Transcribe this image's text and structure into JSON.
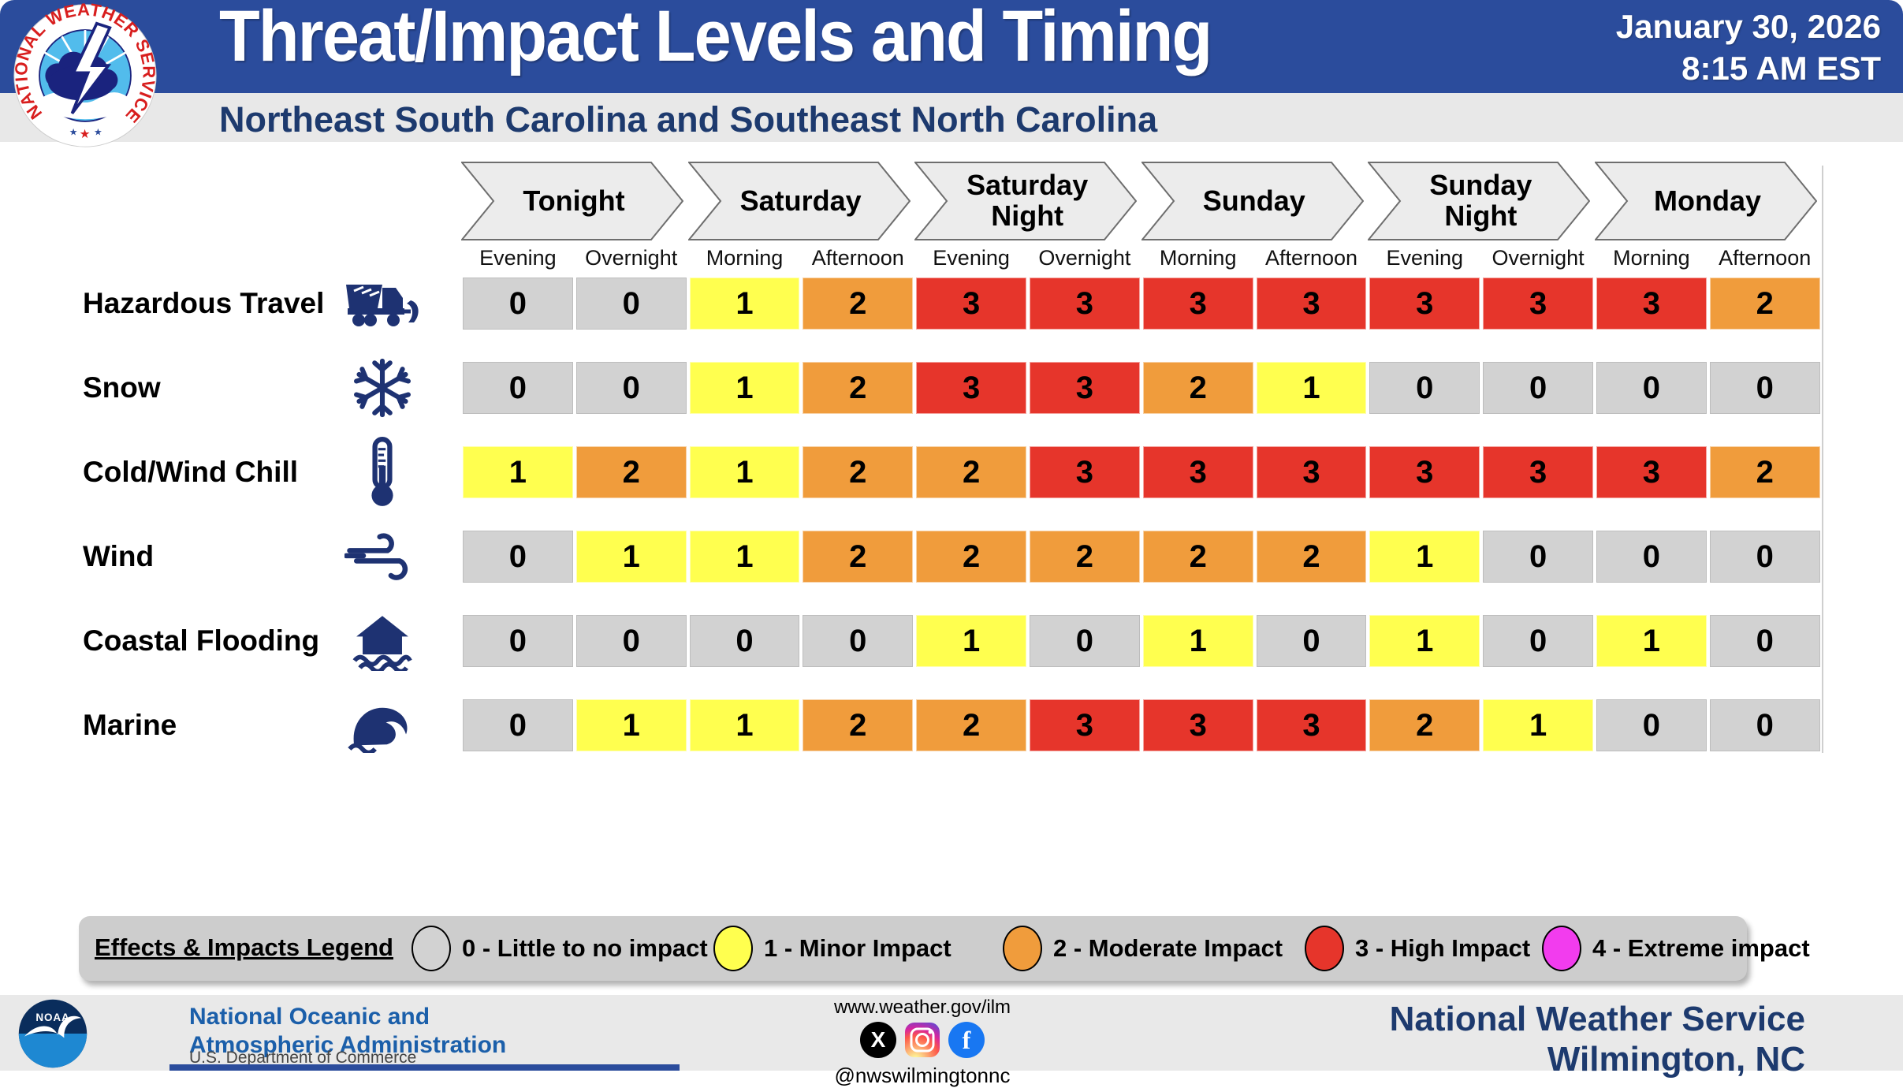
{
  "header": {
    "title": "Threat/Impact Levels and Timing",
    "subtitle": "Northeast South Carolina and Southeast North Carolina",
    "date": "January 30, 2026",
    "time": "8:15 AM EST",
    "nws_logo_text": "NATIONAL WEATHER SERVICE"
  },
  "colors": {
    "header_blue": "#2B4C9C",
    "navy_text": "#1D3A6E",
    "band_gray": "#E8E8E8",
    "legend_bar_gray": "#CDCDCD"
  },
  "chart_data": {
    "type": "heatmap",
    "title": "Threat/Impact Levels and Timing",
    "subtitle": "Northeast South Carolina and Southeast North Carolina",
    "day_groups": [
      {
        "label": "Tonight",
        "periods": [
          "Evening",
          "Overnight"
        ]
      },
      {
        "label": "Saturday",
        "periods": [
          "Morning",
          "Afternoon"
        ]
      },
      {
        "label": "Saturday Night",
        "periods": [
          "Evening",
          "Overnight"
        ]
      },
      {
        "label": "Sunday",
        "periods": [
          "Morning",
          "Afternoon"
        ]
      },
      {
        "label": "Sunday Night",
        "periods": [
          "Evening",
          "Overnight"
        ]
      },
      {
        "label": "Monday",
        "periods": [
          "Morning",
          "Afternoon"
        ]
      }
    ],
    "period_labels": [
      "Evening",
      "Overnight",
      "Morning",
      "Afternoon",
      "Evening",
      "Overnight",
      "Morning",
      "Afternoon",
      "Evening",
      "Overnight",
      "Morning",
      "Afternoon"
    ],
    "rows": [
      {
        "label": "Hazardous Travel",
        "icon": "snowplow-icon",
        "values": [
          0,
          0,
          1,
          2,
          3,
          3,
          3,
          3,
          3,
          3,
          3,
          2
        ]
      },
      {
        "label": "Snow",
        "icon": "snowflake-icon",
        "values": [
          0,
          0,
          1,
          2,
          3,
          3,
          2,
          1,
          0,
          0,
          0,
          0
        ]
      },
      {
        "label": "Cold/Wind Chill",
        "icon": "thermometer-icon",
        "values": [
          1,
          2,
          1,
          2,
          2,
          3,
          3,
          3,
          3,
          3,
          3,
          2
        ]
      },
      {
        "label": "Wind",
        "icon": "wind-icon",
        "values": [
          0,
          1,
          1,
          2,
          2,
          2,
          2,
          2,
          1,
          0,
          0,
          0
        ]
      },
      {
        "label": "Coastal Flooding",
        "icon": "coastal-flooding-icon",
        "values": [
          0,
          0,
          0,
          0,
          1,
          0,
          1,
          0,
          1,
          0,
          1,
          0
        ]
      },
      {
        "label": "Marine",
        "icon": "wave-icon",
        "values": [
          0,
          1,
          1,
          2,
          2,
          3,
          3,
          3,
          2,
          1,
          0,
          0
        ]
      }
    ],
    "level_colors": {
      "0": "#D2D2D2",
      "1": "#FFFF4F",
      "2": "#F09C3C",
      "3": "#E6352B",
      "4": "#F23CEE"
    },
    "legend_position": "bottom",
    "grid": false
  },
  "legend": {
    "title": "Effects & Impacts Legend",
    "items": [
      {
        "level": 0,
        "label": "0 - Little to no impact",
        "color": "#D2D2D2"
      },
      {
        "level": 1,
        "label": "1  - Minor Impact",
        "color": "#FFFF4F"
      },
      {
        "level": 2,
        "label": "2 - Moderate Impact",
        "color": "#F09C3C"
      },
      {
        "level": 3,
        "label": "3 - High Impact",
        "color": "#E6352B"
      },
      {
        "level": 4,
        "label": "4 - Extreme impact",
        "color": "#F23CEE"
      }
    ]
  },
  "footer": {
    "noaa_logo_text": "NOAA",
    "noaa_line1": "National Oceanic and",
    "noaa_line2": "Atmospheric Administration",
    "noaa_sub": "U.S. Department of Commerce",
    "website": "www.weather.gov/ilm",
    "social_handle": "@nwswilmingtonnc",
    "office_line1": "National Weather Service",
    "office_line2": "Wilmington, NC"
  }
}
